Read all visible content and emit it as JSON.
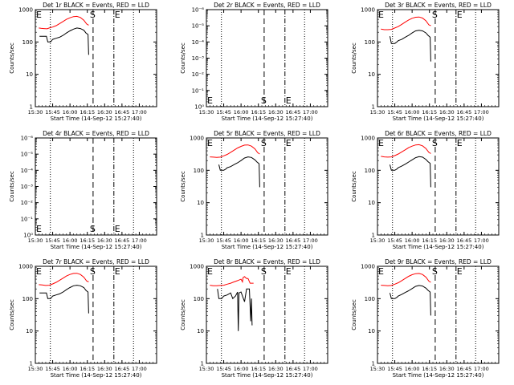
{
  "figure": {
    "x_tick_labels": [
      "15:30",
      "15:45",
      "16:00",
      "16:15",
      "16:30",
      "16:45",
      "17:00"
    ]
  },
  "chart_data": [
    {
      "type": "line",
      "title": "Det 1r BLACK = Events, RED = LLD",
      "xlabel": "Start Time (14-Sep-12 15:27:40)",
      "ylabel": "Counts/sec",
      "yscale": "log",
      "ylim": [
        1,
        1000
      ],
      "y_tick_labels": [
        "1",
        "10",
        "100",
        "1000"
      ],
      "markers": {
        "E1": "15:30",
        "dotted1": "15:43",
        "S": "16:20",
        "E2": "16:38",
        "dotted2": "16:55"
      },
      "red": [
        [
          15.55,
          270
        ],
        [
          15.58,
          265
        ],
        [
          15.62,
          260
        ],
        [
          15.67,
          255
        ],
        [
          15.7,
          270
        ],
        [
          15.75,
          290
        ],
        [
          15.8,
          320
        ],
        [
          15.85,
          370
        ],
        [
          15.9,
          430
        ],
        [
          15.95,
          500
        ],
        [
          16.0,
          560
        ],
        [
          16.05,
          610
        ],
        [
          16.1,
          620
        ],
        [
          16.15,
          570
        ],
        [
          16.2,
          470
        ],
        [
          16.24,
          360
        ],
        [
          16.27,
          330
        ]
      ],
      "black": [
        [
          15.56,
          150
        ],
        [
          15.6,
          150
        ],
        [
          15.63,
          150
        ],
        [
          15.66,
          150
        ],
        [
          15.68,
          100
        ],
        [
          15.72,
          100
        ],
        [
          15.75,
          120
        ],
        [
          15.8,
          130
        ],
        [
          15.85,
          140
        ],
        [
          15.9,
          160
        ],
        [
          15.95,
          190
        ],
        [
          16.0,
          220
        ],
        [
          16.05,
          250
        ],
        [
          16.1,
          270
        ],
        [
          16.15,
          260
        ],
        [
          16.2,
          230
        ],
        [
          16.23,
          190
        ],
        [
          16.26,
          170
        ],
        [
          16.27,
          40
        ]
      ]
    },
    {
      "type": "line",
      "title": "Det 2r BLACK = Events, RED = LLD",
      "xlabel": "Start Time (14-Sep-12 15:27:40)",
      "ylabel": "Counts/sec",
      "yscale": "log",
      "ylim": [
        1,
        1e-06
      ],
      "y_tick_labels": [
        "10⁰",
        "10⁻¹",
        "10⁻²",
        "10⁻³",
        "10⁻⁴",
        "10⁻⁵",
        "10⁻⁶"
      ],
      "markers": {
        "E1": "15:30",
        "dotted1": "15:43",
        "S": "16:20",
        "E2": "16:38",
        "dotted2": "16:55"
      },
      "red": [],
      "black": []
    },
    {
      "type": "line",
      "title": "Det 3r BLACK = Events, RED = LLD",
      "xlabel": "Start Time (14-Sep-12 15:27:40)",
      "ylabel": "Counts/sec",
      "yscale": "log",
      "ylim": [
        1,
        1000
      ],
      "y_tick_labels": [
        "1",
        "10",
        "100",
        "1000"
      ],
      "markers": {
        "E1": "15:30",
        "dotted1": "15:43",
        "S": "16:20",
        "E2": "16:38",
        "dotted2": "16:55"
      },
      "red": [
        [
          15.55,
          250
        ],
        [
          15.6,
          240
        ],
        [
          15.65,
          240
        ],
        [
          15.7,
          245
        ],
        [
          15.75,
          270
        ],
        [
          15.8,
          300
        ],
        [
          15.85,
          350
        ],
        [
          15.9,
          410
        ],
        [
          15.95,
          480
        ],
        [
          16.0,
          540
        ],
        [
          16.05,
          580
        ],
        [
          16.1,
          590
        ],
        [
          16.15,
          550
        ],
        [
          16.2,
          450
        ],
        [
          16.24,
          340
        ],
        [
          16.27,
          320
        ]
      ],
      "black": [
        [
          15.68,
          150
        ],
        [
          15.7,
          90
        ],
        [
          15.75,
          90
        ],
        [
          15.78,
          100
        ],
        [
          15.8,
          110
        ],
        [
          15.85,
          120
        ],
        [
          15.9,
          140
        ],
        [
          15.95,
          160
        ],
        [
          16.0,
          190
        ],
        [
          16.05,
          220
        ],
        [
          16.1,
          230
        ],
        [
          16.15,
          220
        ],
        [
          16.2,
          190
        ],
        [
          16.23,
          160
        ],
        [
          16.26,
          140
        ],
        [
          16.27,
          25
        ]
      ]
    },
    {
      "type": "line",
      "title": "Det 4r BLACK = Events, RED = LLD",
      "xlabel": "Start Time (14-Sep-12 15:27:40)",
      "ylabel": "Counts/sec",
      "yscale": "log",
      "ylim": [
        1,
        1e-06
      ],
      "y_tick_labels": [
        "10⁰",
        "10⁻¹",
        "10⁻²",
        "10⁻³",
        "10⁻⁴",
        "10⁻⁵",
        "10⁻⁶"
      ],
      "markers": {
        "E1": "15:30",
        "dotted1": "15:43",
        "S": "16:20",
        "E2": "16:38",
        "dotted2": "16:55"
      },
      "red": [],
      "black": []
    },
    {
      "type": "line",
      "title": "Det 5r BLACK = Events, RED = LLD",
      "xlabel": "Start Time (14-Sep-12 15:27:40)",
      "ylabel": "Counts/sec",
      "yscale": "log",
      "ylim": [
        1,
        1000
      ],
      "y_tick_labels": [
        "1",
        "10",
        "100",
        "1000"
      ],
      "markers": {
        "E1": "15:30",
        "dotted1": "15:43",
        "S": "16:20",
        "E2": "16:38",
        "dotted2": "16:55"
      },
      "red": [
        [
          15.55,
          260
        ],
        [
          15.6,
          255
        ],
        [
          15.65,
          250
        ],
        [
          15.7,
          255
        ],
        [
          15.75,
          280
        ],
        [
          15.8,
          310
        ],
        [
          15.85,
          360
        ],
        [
          15.9,
          420
        ],
        [
          15.95,
          490
        ],
        [
          16.0,
          550
        ],
        [
          16.05,
          600
        ],
        [
          16.1,
          610
        ],
        [
          16.15,
          560
        ],
        [
          16.2,
          460
        ],
        [
          16.24,
          350
        ],
        [
          16.27,
          320
        ]
      ],
      "black": [
        [
          15.68,
          150
        ],
        [
          15.7,
          100
        ],
        [
          15.75,
          100
        ],
        [
          15.78,
          110
        ],
        [
          15.8,
          120
        ],
        [
          15.85,
          130
        ],
        [
          15.9,
          150
        ],
        [
          15.95,
          170
        ],
        [
          16.0,
          200
        ],
        [
          16.05,
          240
        ],
        [
          16.1,
          260
        ],
        [
          16.15,
          250
        ],
        [
          16.2,
          210
        ],
        [
          16.23,
          180
        ],
        [
          16.26,
          160
        ],
        [
          16.27,
          30
        ]
      ]
    },
    {
      "type": "line",
      "title": "Det 6r BLACK = Events, RED = LLD",
      "xlabel": "Start Time (14-Sep-12 15:27:40)",
      "ylabel": "Counts/sec",
      "yscale": "log",
      "ylim": [
        1,
        1000
      ],
      "y_tick_labels": [
        "1",
        "10",
        "100",
        "1000"
      ],
      "markers": {
        "E1": "15:30",
        "dotted1": "15:43",
        "S": "16:20",
        "E2": "16:38",
        "dotted2": "16:55"
      },
      "red": [
        [
          15.55,
          270
        ],
        [
          15.6,
          260
        ],
        [
          15.65,
          255
        ],
        [
          15.7,
          260
        ],
        [
          15.75,
          285
        ],
        [
          15.8,
          320
        ],
        [
          15.85,
          370
        ],
        [
          15.9,
          430
        ],
        [
          15.95,
          500
        ],
        [
          16.0,
          560
        ],
        [
          16.05,
          610
        ],
        [
          16.1,
          620
        ],
        [
          16.15,
          570
        ],
        [
          16.2,
          470
        ],
        [
          16.24,
          360
        ],
        [
          16.27,
          330
        ]
      ],
      "black": [
        [
          15.68,
          150
        ],
        [
          15.7,
          100
        ],
        [
          15.75,
          100
        ],
        [
          15.78,
          110
        ],
        [
          15.8,
          120
        ],
        [
          15.85,
          135
        ],
        [
          15.9,
          155
        ],
        [
          15.95,
          180
        ],
        [
          16.0,
          210
        ],
        [
          16.05,
          245
        ],
        [
          16.1,
          265
        ],
        [
          16.15,
          255
        ],
        [
          16.2,
          215
        ],
        [
          16.23,
          185
        ],
        [
          16.26,
          165
        ],
        [
          16.27,
          30
        ]
      ]
    },
    {
      "type": "line",
      "title": "Det 7r BLACK = Events, RED = LLD",
      "xlabel": "Start Time (14-Sep-12 15:27:40)",
      "ylabel": "Counts/sec",
      "yscale": "log",
      "ylim": [
        1,
        1000
      ],
      "y_tick_labels": [
        "1",
        "10",
        "100",
        "1000"
      ],
      "markers": {
        "E1": "15:30",
        "dotted1": "15:43",
        "S": "16:20",
        "E2": "16:38",
        "dotted2": "16:55"
      },
      "red": [
        [
          15.55,
          270
        ],
        [
          15.6,
          265
        ],
        [
          15.65,
          255
        ],
        [
          15.7,
          260
        ],
        [
          15.75,
          285
        ],
        [
          15.8,
          320
        ],
        [
          15.85,
          370
        ],
        [
          15.9,
          430
        ],
        [
          15.95,
          500
        ],
        [
          16.0,
          560
        ],
        [
          16.05,
          600
        ],
        [
          16.1,
          610
        ],
        [
          16.15,
          560
        ],
        [
          16.2,
          460
        ],
        [
          16.24,
          350
        ],
        [
          16.27,
          330
        ]
      ],
      "black": [
        [
          15.56,
          150
        ],
        [
          15.6,
          150
        ],
        [
          15.63,
          150
        ],
        [
          15.66,
          150
        ],
        [
          15.68,
          100
        ],
        [
          15.72,
          100
        ],
        [
          15.75,
          120
        ],
        [
          15.8,
          130
        ],
        [
          15.85,
          140
        ],
        [
          15.9,
          160
        ],
        [
          15.95,
          190
        ],
        [
          16.0,
          220
        ],
        [
          16.05,
          250
        ],
        [
          16.1,
          260
        ],
        [
          16.15,
          250
        ],
        [
          16.2,
          220
        ],
        [
          16.23,
          180
        ],
        [
          16.26,
          160
        ],
        [
          16.27,
          35
        ]
      ]
    },
    {
      "type": "line",
      "title": "Det 8r BLACK = Events, RED = LLD",
      "xlabel": "Start Time (14-Sep-12 15:27:40)",
      "ylabel": "Counts/sec",
      "yscale": "log",
      "ylim": [
        1,
        1000
      ],
      "y_tick_labels": [
        "1",
        "10",
        "100",
        "1000"
      ],
      "markers": {
        "E1": "15:30",
        "dotted1": "15:43",
        "S": "16:20",
        "E2": "16:38",
        "dotted2": "16:55"
      },
      "red": [
        [
          15.55,
          260
        ],
        [
          15.6,
          250
        ],
        [
          15.65,
          250
        ],
        [
          15.7,
          255
        ],
        [
          15.75,
          260
        ],
        [
          15.8,
          280
        ],
        [
          15.85,
          300
        ],
        [
          15.9,
          330
        ],
        [
          15.95,
          360
        ],
        [
          16.0,
          400
        ],
        [
          16.02,
          330
        ],
        [
          16.03,
          450
        ],
        [
          16.05,
          480
        ],
        [
          16.08,
          420
        ],
        [
          16.1,
          420
        ],
        [
          16.13,
          300
        ],
        [
          16.15,
          300
        ],
        [
          16.18,
          300
        ]
      ],
      "black": [
        [
          15.66,
          200
        ],
        [
          15.68,
          100
        ],
        [
          15.72,
          100
        ],
        [
          15.75,
          120
        ],
        [
          15.8,
          130
        ],
        [
          15.85,
          150
        ],
        [
          15.88,
          100
        ],
        [
          15.92,
          120
        ],
        [
          15.95,
          160
        ],
        [
          15.96,
          10
        ],
        [
          15.97,
          150
        ],
        [
          16.0,
          160
        ],
        [
          16.05,
          80
        ],
        [
          16.08,
          200
        ],
        [
          16.1,
          200
        ],
        [
          16.12,
          200
        ],
        [
          16.14,
          20
        ],
        [
          16.15,
          100
        ],
        [
          16.16,
          15
        ]
      ]
    },
    {
      "type": "line",
      "title": "Det 9r BLACK = Events, RED = LLD",
      "xlabel": "Start Time (14-Sep-12 15:27:40)",
      "ylabel": "Counts/sec",
      "yscale": "log",
      "ylim": [
        1,
        1000
      ],
      "y_tick_labels": [
        "1",
        "10",
        "100",
        "1000"
      ],
      "markers": {
        "E1": "15:30",
        "dotted1": "15:43",
        "S": "16:20",
        "E2": "16:38",
        "dotted2": "16:55"
      },
      "red": [
        [
          15.55,
          260
        ],
        [
          15.6,
          255
        ],
        [
          15.65,
          250
        ],
        [
          15.7,
          255
        ],
        [
          15.75,
          280
        ],
        [
          15.8,
          310
        ],
        [
          15.85,
          360
        ],
        [
          15.9,
          420
        ],
        [
          15.95,
          490
        ],
        [
          16.0,
          550
        ],
        [
          16.05,
          590
        ],
        [
          16.1,
          600
        ],
        [
          16.15,
          560
        ],
        [
          16.2,
          460
        ],
        [
          16.24,
          350
        ],
        [
          16.27,
          320
        ]
      ],
      "black": [
        [
          15.68,
          150
        ],
        [
          15.7,
          100
        ],
        [
          15.75,
          100
        ],
        [
          15.78,
          110
        ],
        [
          15.8,
          120
        ],
        [
          15.85,
          135
        ],
        [
          15.9,
          155
        ],
        [
          15.95,
          175
        ],
        [
          16.0,
          205
        ],
        [
          16.05,
          240
        ],
        [
          16.1,
          255
        ],
        [
          16.15,
          245
        ],
        [
          16.2,
          210
        ],
        [
          16.23,
          180
        ],
        [
          16.26,
          160
        ],
        [
          16.27,
          30
        ]
      ]
    }
  ]
}
